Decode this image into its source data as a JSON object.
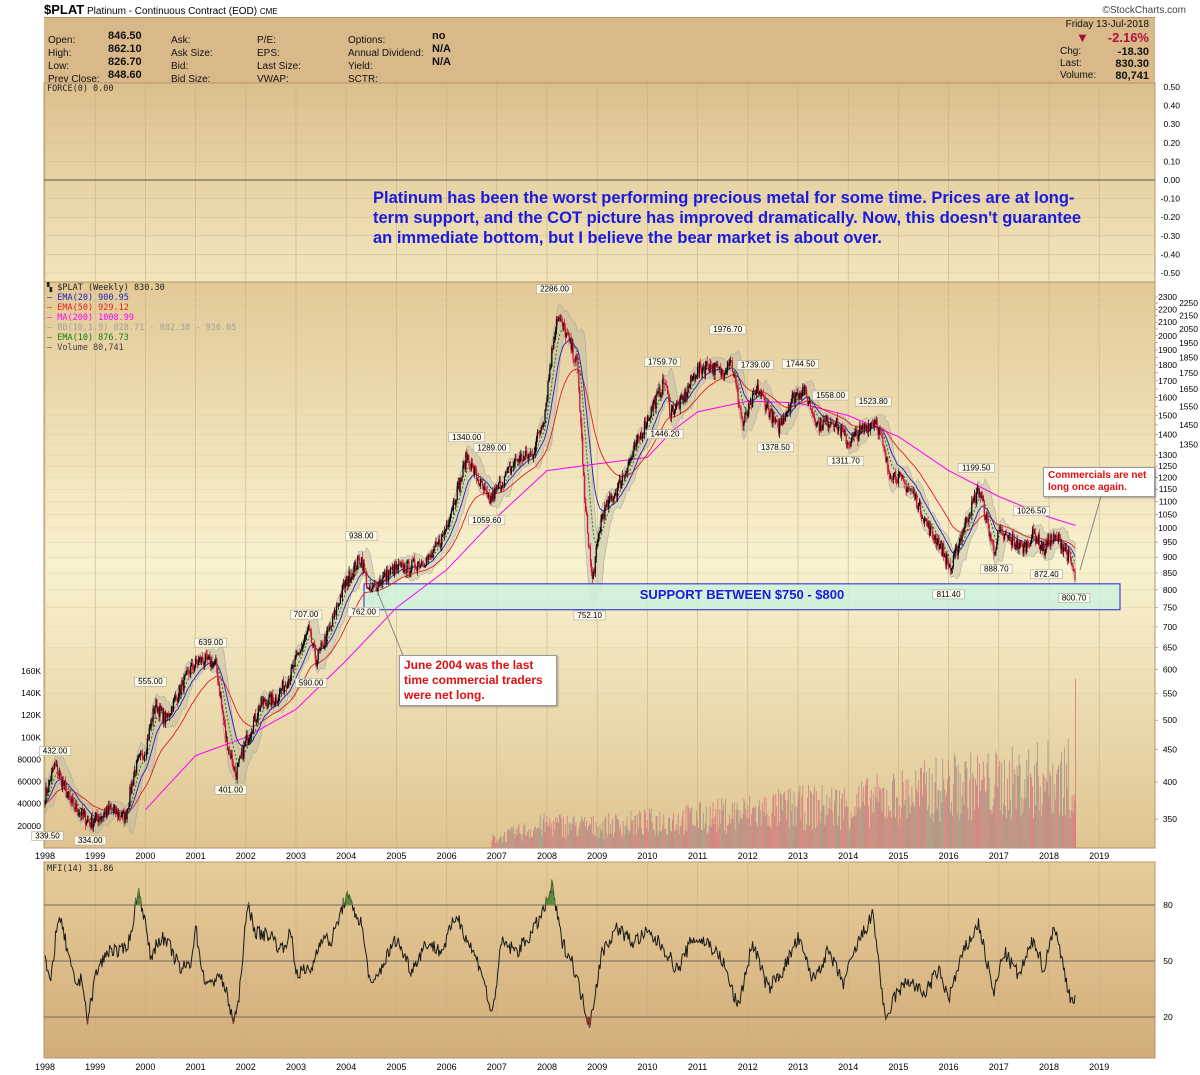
{
  "header": {
    "symbol": "$PLAT",
    "description": "Platinum - Continuous Contract (EOD)",
    "exchange": "CME",
    "credit": "©StockCharts.com",
    "date": "Friday  13-Jul-2018",
    "change_pct": "-2.16%",
    "down_icon": "triangle-down",
    "fields_left": [
      {
        "label": "Open:",
        "value": "846.50"
      },
      {
        "label": "High:",
        "value": "862.10"
      },
      {
        "label": "Low:",
        "value": "826.70"
      },
      {
        "label": "Prev Close:",
        "value": "848.60"
      }
    ],
    "fields_mid1": [
      "Ask:",
      "Ask Size:",
      "Bid:",
      "Bid Size:"
    ],
    "fields_mid2": [
      "P/E:",
      "EPS:",
      "Last Size:",
      "VWAP:"
    ],
    "fields_mid3": [
      {
        "label": "Options:",
        "value": "no"
      },
      {
        "label": "Annual Dividend:",
        "value": "N/A"
      },
      {
        "label": "Yield:",
        "value": "N/A"
      },
      {
        "label": "SCTR:",
        "value": ""
      }
    ],
    "fields_right": [
      {
        "label": "Chg:",
        "value": "-18.30"
      },
      {
        "label": "Last:",
        "value": "830.30"
      },
      {
        "label": "Volume:",
        "value": "80,741"
      }
    ]
  },
  "colors": {
    "ema20": "#2020c0",
    "ema50": "#e02020",
    "ma200": "#ff00ff",
    "bb": "#a0a0a0",
    "ema10": "#108010",
    "up": "#000000",
    "down": "#d01030",
    "volume": "#d87878",
    "support_fill": "#cdf2dc",
    "support_border": "#2020e0",
    "annotation": "#1a1ae0"
  },
  "annotation_text": "Platinum has been the worst performing precious metal for some time. Prices are at long-term support, and the COT picture has improved dramatically. Now, this doesn't guarantee an immediate bottom, but I believe the bear market is about over.",
  "support_label": "SUPPORT BETWEEN $750 - $800",
  "callout_2004": "June 2004 was the last time commercial traders were net long.",
  "callout_2018": "Commercials are net long once again.",
  "chart_data": [
    {
      "panel": "force",
      "type": "line",
      "legend": "FORCE(0) 0.00",
      "y_ticks": [
        "0.50",
        "0.40",
        "0.30",
        "0.20",
        "0.10",
        "0.00",
        "-0.10",
        "-0.20",
        "-0.30",
        "-0.40",
        "-0.50"
      ],
      "ylim": [
        -0.5,
        0.5
      ],
      "values": [
        0
      ]
    },
    {
      "panel": "price",
      "type": "candlestick",
      "scale": "log",
      "ylim": [
        330,
        2320
      ],
      "xlim": [
        1998,
        2019.3
      ],
      "legend": [
        {
          "text": "$PLAT (Weekly) 830.30",
          "color": "#222222"
        },
        {
          "text": "EMA(20) 900.95",
          "color": "#2020c0"
        },
        {
          "text": "EMA(50) 929.12",
          "color": "#e02020"
        },
        {
          "text": "MA(200) 1008.99",
          "color": "#ff00ff"
        },
        {
          "text": "BB(10,1.9) 828.71 - 882.38 - 936.05",
          "color": "#a0a0a0"
        },
        {
          "text": "EMA(10) 876.73",
          "color": "#108010"
        },
        {
          "text": "Volume 80,741",
          "color": "#444444"
        }
      ],
      "y_ticks": [
        2300,
        2250,
        2200,
        2150,
        2100,
        2050,
        2000,
        1950,
        1900,
        1850,
        1800,
        1750,
        1700,
        1650,
        1600,
        1550,
        1500,
        1450,
        1400,
        1350,
        1300,
        1250,
        1200,
        1150,
        1100,
        1050,
        1000,
        950,
        900,
        850,
        800,
        750,
        700,
        650,
        600,
        550,
        500,
        450,
        400,
        350
      ],
      "x_ticks": [
        "1998",
        "1999",
        "2000",
        "2001",
        "2002",
        "2003",
        "2004",
        "2005",
        "2006",
        "2007",
        "2008",
        "2009",
        "2010",
        "2011",
        "2012",
        "2013",
        "2014",
        "2015",
        "2016",
        "2017",
        "2018",
        "2019"
      ],
      "close_points": [
        [
          1998.0,
          380
        ],
        [
          1998.2,
          425
        ],
        [
          1998.5,
          372
        ],
        [
          1998.9,
          345
        ],
        [
          1999.3,
          362
        ],
        [
          1999.6,
          352
        ],
        [
          1999.8,
          420
        ],
        [
          2000.0,
          450
        ],
        [
          2000.2,
          530
        ],
        [
          2000.4,
          500
        ],
        [
          2000.7,
          560
        ],
        [
          2000.9,
          600
        ],
        [
          2001.1,
          622
        ],
        [
          2001.4,
          612
        ],
        [
          2001.6,
          470
        ],
        [
          2001.8,
          410
        ],
        [
          2002.0,
          460
        ],
        [
          2002.3,
          530
        ],
        [
          2002.6,
          540
        ],
        [
          2002.9,
          590
        ],
        [
          2003.25,
          690
        ],
        [
          2003.4,
          620
        ],
        [
          2003.7,
          700
        ],
        [
          2003.95,
          810
        ],
        [
          2004.3,
          900
        ],
        [
          2004.45,
          790
        ],
        [
          2004.7,
          830
        ],
        [
          2004.95,
          860
        ],
        [
          2005.3,
          870
        ],
        [
          2005.7,
          900
        ],
        [
          2005.95,
          980
        ],
        [
          2006.3,
          1200
        ],
        [
          2006.4,
          1300
        ],
        [
          2006.6,
          1200
        ],
        [
          2006.85,
          1100
        ],
        [
          2007.1,
          1180
        ],
        [
          2007.4,
          1280
        ],
        [
          2007.7,
          1300
        ],
        [
          2007.95,
          1500
        ],
        [
          2008.2,
          2150
        ],
        [
          2008.4,
          2000
        ],
        [
          2008.6,
          1800
        ],
        [
          2008.75,
          1100
        ],
        [
          2008.9,
          820
        ],
        [
          2009.1,
          1050
        ],
        [
          2009.4,
          1150
        ],
        [
          2009.7,
          1300
        ],
        [
          2009.95,
          1450
        ],
        [
          2010.35,
          1700
        ],
        [
          2010.45,
          1520
        ],
        [
          2010.7,
          1580
        ],
        [
          2010.95,
          1750
        ],
        [
          2011.2,
          1800
        ],
        [
          2011.5,
          1750
        ],
        [
          2011.65,
          1850
        ],
        [
          2011.9,
          1450
        ],
        [
          2012.2,
          1650
        ],
        [
          2012.6,
          1430
        ],
        [
          2012.9,
          1600
        ],
        [
          2013.1,
          1650
        ],
        [
          2013.4,
          1450
        ],
        [
          2013.7,
          1480
        ],
        [
          2014.0,
          1360
        ],
        [
          2014.3,
          1430
        ],
        [
          2014.55,
          1480
        ],
        [
          2014.8,
          1230
        ],
        [
          2015.0,
          1200
        ],
        [
          2015.3,
          1130
        ],
        [
          2015.6,
          1000
        ],
        [
          2015.8,
          950
        ],
        [
          2016.05,
          860
        ],
        [
          2016.3,
          1000
        ],
        [
          2016.6,
          1150
        ],
        [
          2016.9,
          920
        ],
        [
          2017.0,
          980
        ],
        [
          2017.3,
          950
        ],
        [
          2017.5,
          930
        ],
        [
          2017.7,
          980
        ],
        [
          2017.9,
          920
        ],
        [
          2018.0,
          960
        ],
        [
          2018.2,
          960
        ],
        [
          2018.4,
          900
        ],
        [
          2018.53,
          830.3
        ]
      ],
      "price_labels": [
        {
          "text": "432.00",
          "x": 1998.2,
          "y": 432,
          "pos": "above"
        },
        {
          "text": "339.50",
          "x": 1998.05,
          "y": 339.5,
          "pos": "below"
        },
        {
          "text": "334.00",
          "x": 1998.9,
          "y": 334,
          "pos": "below"
        },
        {
          "text": "555.00",
          "x": 2000.1,
          "y": 555,
          "pos": "above"
        },
        {
          "text": "639.00",
          "x": 2001.3,
          "y": 639,
          "pos": "above"
        },
        {
          "text": "401.00",
          "x": 2001.7,
          "y": 401,
          "pos": "below"
        },
        {
          "text": "707.00",
          "x": 2003.2,
          "y": 707,
          "pos": "above"
        },
        {
          "text": "590.00",
          "x": 2003.3,
          "y": 590,
          "pos": "below"
        },
        {
          "text": "938.00",
          "x": 2004.3,
          "y": 938,
          "pos": "above"
        },
        {
          "text": "762.00",
          "x": 2004.35,
          "y": 762,
          "pos": "below"
        },
        {
          "text": "1340.00",
          "x": 2006.4,
          "y": 1340,
          "pos": "above"
        },
        {
          "text": "1289.00",
          "x": 2006.9,
          "y": 1289,
          "pos": "above"
        },
        {
          "text": "1059.60",
          "x": 2006.8,
          "y": 1059.6,
          "pos": "below"
        },
        {
          "text": "2286.00",
          "x": 2008.15,
          "y": 2286,
          "pos": "above"
        },
        {
          "text": "752.10",
          "x": 2008.85,
          "y": 752.1,
          "pos": "below"
        },
        {
          "text": "1759.70",
          "x": 2010.3,
          "y": 1759.7,
          "pos": "above"
        },
        {
          "text": "1446.20",
          "x": 2010.35,
          "y": 1446.2,
          "pos": "below"
        },
        {
          "text": "1976.70",
          "x": 2011.6,
          "y": 1976.7,
          "pos": "above"
        },
        {
          "text": "1739.00",
          "x": 2012.15,
          "y": 1739,
          "pos": "above"
        },
        {
          "text": "1378.50",
          "x": 2012.55,
          "y": 1378.5,
          "pos": "below"
        },
        {
          "text": "1744.50",
          "x": 2013.05,
          "y": 1744.5,
          "pos": "above"
        },
        {
          "text": "1558.00",
          "x": 2013.65,
          "y": 1558,
          "pos": "above"
        },
        {
          "text": "1311.70",
          "x": 2013.95,
          "y": 1311.7,
          "pos": "below"
        },
        {
          "text": "1523.80",
          "x": 2014.5,
          "y": 1523.8,
          "pos": "above"
        },
        {
          "text": "1199.50",
          "x": 2016.55,
          "y": 1199.5,
          "pos": "above"
        },
        {
          "text": "811.40",
          "x": 2016.0,
          "y": 811.4,
          "pos": "below"
        },
        {
          "text": "1026.50",
          "x": 2017.65,
          "y": 1026.5,
          "pos": "above"
        },
        {
          "text": "888.70",
          "x": 2016.95,
          "y": 888.7,
          "pos": "below"
        },
        {
          "text": "872.40",
          "x": 2017.95,
          "y": 872.4,
          "pos": "below"
        },
        {
          "text": "800.70",
          "x": 2018.5,
          "y": 800.7,
          "pos": "below"
        }
      ],
      "support_zone": [
        750,
        800
      ],
      "ma200_points": [
        [
          2000.0,
          362
        ],
        [
          2001.0,
          440
        ],
        [
          2002.0,
          470
        ],
        [
          2003.0,
          520
        ],
        [
          2004.0,
          620
        ],
        [
          2005.0,
          750
        ],
        [
          2006.0,
          860
        ],
        [
          2007.0,
          1040
        ],
        [
          2008.0,
          1230
        ],
        [
          2009.0,
          1260
        ],
        [
          2010.0,
          1290
        ],
        [
          2010.5,
          1420
        ],
        [
          2011.0,
          1520
        ],
        [
          2012.0,
          1580
        ],
        [
          2013.0,
          1570
        ],
        [
          2014.0,
          1500
        ],
        [
          2015.0,
          1390
        ],
        [
          2016.0,
          1230
        ],
        [
          2017.0,
          1120
        ],
        [
          2018.0,
          1040
        ],
        [
          2018.53,
          1008.99
        ]
      ]
    },
    {
      "panel": "volume",
      "type": "bar",
      "y_ticks": [
        "160K",
        "140K",
        "120K",
        "100K",
        "80000",
        "60000",
        "40000",
        "20000"
      ],
      "ylim": [
        0,
        180000
      ],
      "yearly_typical_volume": [
        [
          1998,
          2000
        ],
        [
          2003,
          2500
        ],
        [
          2006,
          4000
        ],
        [
          2007,
          9000
        ],
        [
          2008,
          22000
        ],
        [
          2009,
          20000
        ],
        [
          2010,
          24000
        ],
        [
          2011,
          28000
        ],
        [
          2012,
          33000
        ],
        [
          2013,
          38000
        ],
        [
          2014,
          40000
        ],
        [
          2015,
          48000
        ],
        [
          2016,
          58000
        ],
        [
          2017,
          60000
        ],
        [
          2018,
          66000
        ]
      ],
      "last_value": 80741
    },
    {
      "panel": "mfi",
      "type": "line",
      "legend": "MFI(14) 31.86",
      "y_ticks": [
        "80",
        "50",
        "20"
      ],
      "ylim": [
        0,
        100
      ],
      "points": [
        [
          1998.0,
          52
        ],
        [
          1998.1,
          36
        ],
        [
          1998.25,
          72
        ],
        [
          1998.35,
          68
        ],
        [
          1998.5,
          48
        ],
        [
          1998.6,
          38
        ],
        [
          1998.75,
          40
        ],
        [
          1998.85,
          17
        ],
        [
          1999.0,
          42
        ],
        [
          1999.1,
          48
        ],
        [
          1999.3,
          57
        ],
        [
          1999.5,
          54
        ],
        [
          1999.7,
          62
        ],
        [
          1999.85,
          88
        ],
        [
          1999.95,
          78
        ],
        [
          2000.1,
          52
        ],
        [
          2000.3,
          63
        ],
        [
          2000.5,
          57
        ],
        [
          2000.7,
          45
        ],
        [
          2000.9,
          49
        ],
        [
          2001.0,
          68
        ],
        [
          2001.15,
          42
        ],
        [
          2001.3,
          36
        ],
        [
          2001.45,
          44
        ],
        [
          2001.6,
          34
        ],
        [
          2001.75,
          18
        ],
        [
          2001.85,
          25
        ],
        [
          2001.95,
          58
        ],
        [
          2002.05,
          80
        ],
        [
          2002.2,
          65
        ],
        [
          2002.5,
          64
        ],
        [
          2002.7,
          56
        ],
        [
          2002.9,
          65
        ],
        [
          2003.0,
          44
        ],
        [
          2003.3,
          45
        ],
        [
          2003.5,
          63
        ],
        [
          2003.7,
          60
        ],
        [
          2004.0,
          85
        ],
        [
          2004.3,
          70
        ],
        [
          2004.5,
          35
        ],
        [
          2004.8,
          52
        ],
        [
          2005.0,
          62
        ],
        [
          2005.3,
          45
        ],
        [
          2005.6,
          60
        ],
        [
          2005.9,
          55
        ],
        [
          2006.2,
          75
        ],
        [
          2006.4,
          62
        ],
        [
          2006.7,
          45
        ],
        [
          2006.9,
          20
        ],
        [
          2007.1,
          60
        ],
        [
          2007.4,
          55
        ],
        [
          2007.7,
          65
        ],
        [
          2007.95,
          78
        ],
        [
          2008.1,
          90
        ],
        [
          2008.3,
          60
        ],
        [
          2008.5,
          50
        ],
        [
          2008.7,
          30
        ],
        [
          2008.85,
          16
        ],
        [
          2009.1,
          55
        ],
        [
          2009.4,
          68
        ],
        [
          2009.7,
          60
        ],
        [
          2010.0,
          65
        ],
        [
          2010.3,
          58
        ],
        [
          2010.6,
          45
        ],
        [
          2010.9,
          62
        ],
        [
          2011.2,
          60
        ],
        [
          2011.5,
          50
        ],
        [
          2011.8,
          25
        ],
        [
          2012.1,
          60
        ],
        [
          2012.4,
          35
        ],
        [
          2012.7,
          45
        ],
        [
          2013.0,
          62
        ],
        [
          2013.3,
          40
        ],
        [
          2013.6,
          55
        ],
        [
          2013.9,
          38
        ],
        [
          2014.2,
          60
        ],
        [
          2014.5,
          75
        ],
        [
          2014.75,
          15
        ],
        [
          2014.9,
          30
        ],
        [
          2015.2,
          40
        ],
        [
          2015.5,
          32
        ],
        [
          2015.8,
          45
        ],
        [
          2016.0,
          30
        ],
        [
          2016.3,
          55
        ],
        [
          2016.6,
          70
        ],
        [
          2016.9,
          32
        ],
        [
          2017.1,
          55
        ],
        [
          2017.4,
          42
        ],
        [
          2017.7,
          62
        ],
        [
          2017.9,
          45
        ],
        [
          2018.1,
          70
        ],
        [
          2018.3,
          45
        ],
        [
          2018.45,
          28
        ],
        [
          2018.53,
          31.86
        ]
      ]
    }
  ]
}
